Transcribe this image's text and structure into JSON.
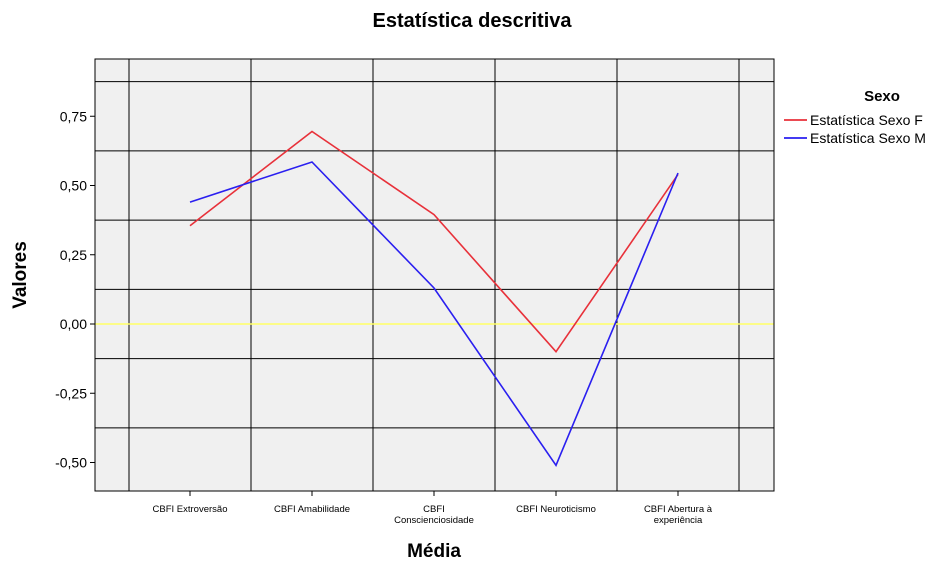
{
  "chart_data": {
    "type": "line",
    "title": "Estatística descritiva",
    "xlabel": "Média",
    "ylabel": "Valores",
    "categories": [
      [
        "CBFI Extroversão"
      ],
      [
        "CBFI Amabilidade"
      ],
      [
        "CBFI",
        "Conscienciosidade"
      ],
      [
        "CBFI Neuroticismo"
      ],
      [
        "CBFI Abertura à",
        "experiência"
      ]
    ],
    "y_ticks": [
      "0,75",
      "0,50",
      "0,25",
      "0,00",
      "-0,25",
      "-0,50"
    ],
    "y_tick_values": [
      0.75,
      0.5,
      0.25,
      0,
      -0.25,
      -0.5
    ],
    "ylim": [
      -0.6,
      0.95
    ],
    "reference_line": {
      "y": 0,
      "color": "#ffff66"
    },
    "grid": true,
    "legend": {
      "title": "Sexo",
      "position": "top-right"
    },
    "series": [
      {
        "name": "Estatística Sexo F",
        "color": "#e8313a",
        "values": [
          0.355,
          0.695,
          0.395,
          -0.1,
          0.54
        ]
      },
      {
        "name": "Estatística Sexo M",
        "color": "#2a1ff0",
        "values": [
          0.44,
          0.585,
          0.13,
          -0.51,
          0.545
        ]
      }
    ]
  }
}
